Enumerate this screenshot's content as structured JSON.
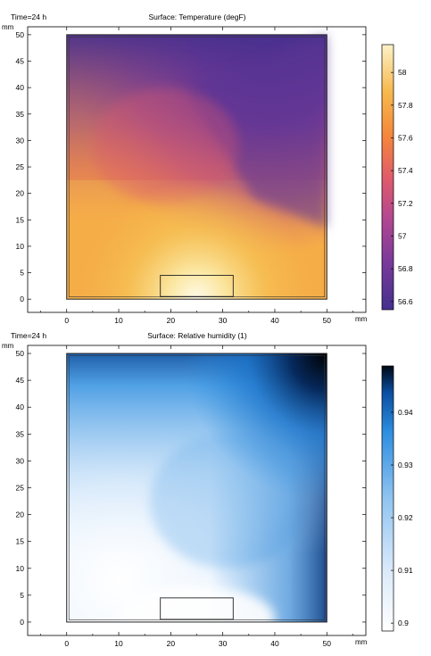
{
  "chart_data": [
    {
      "type": "heatmap",
      "time_label": "Time=24 h",
      "title": "Surface: Temperature (degF)",
      "unit_label": "mm",
      "x_ticks": [
        0,
        10,
        20,
        30,
        40,
        50
      ],
      "y_ticks": [
        0,
        5,
        10,
        15,
        20,
        25,
        30,
        35,
        40,
        45,
        50
      ],
      "xlim": [
        -7.5,
        57.5
      ],
      "ylim": [
        -2.5,
        51.5
      ],
      "colormap": "thermal-plasma",
      "colorbar_ticks": [
        58,
        57.8,
        57.6,
        57.4,
        57.2,
        57,
        56.8,
        56.6
      ],
      "colorbar_range": [
        56.55,
        58.17
      ],
      "domain_outline": {
        "x": [
          0,
          50
        ],
        "y": [
          0,
          50
        ]
      },
      "inlet_opening_y": [
        41,
        50
      ],
      "outlet_opening_y": [
        15,
        50
      ],
      "heater_block": {
        "x": [
          18,
          32
        ],
        "y": [
          0.5,
          4.5
        ]
      },
      "hot_spot_x": 25,
      "cold_region": "top"
    },
    {
      "type": "heatmap",
      "time_label": "Time=24 h",
      "title": "Surface: Relative humidity (1)",
      "unit_label": "mm",
      "x_ticks": [
        0,
        10,
        20,
        30,
        40,
        50
      ],
      "y_ticks": [
        0,
        5,
        10,
        15,
        20,
        25,
        30,
        35,
        40,
        45,
        50
      ],
      "xlim": [
        -7.5,
        57.5
      ],
      "ylim": [
        -2.5,
        51.5
      ],
      "colormap": "white-blue-black",
      "colorbar_ticks": [
        0.94,
        0.93,
        0.92,
        0.91,
        0.9
      ],
      "colorbar_range": [
        0.8985,
        0.9488
      ],
      "domain_outline": {
        "x": [
          0,
          50
        ],
        "y": [
          0,
          50
        ]
      },
      "heater_block": {
        "x": [
          18,
          32
        ],
        "y": [
          0.5,
          4.5
        ]
      },
      "max_region": "top-right"
    }
  ]
}
